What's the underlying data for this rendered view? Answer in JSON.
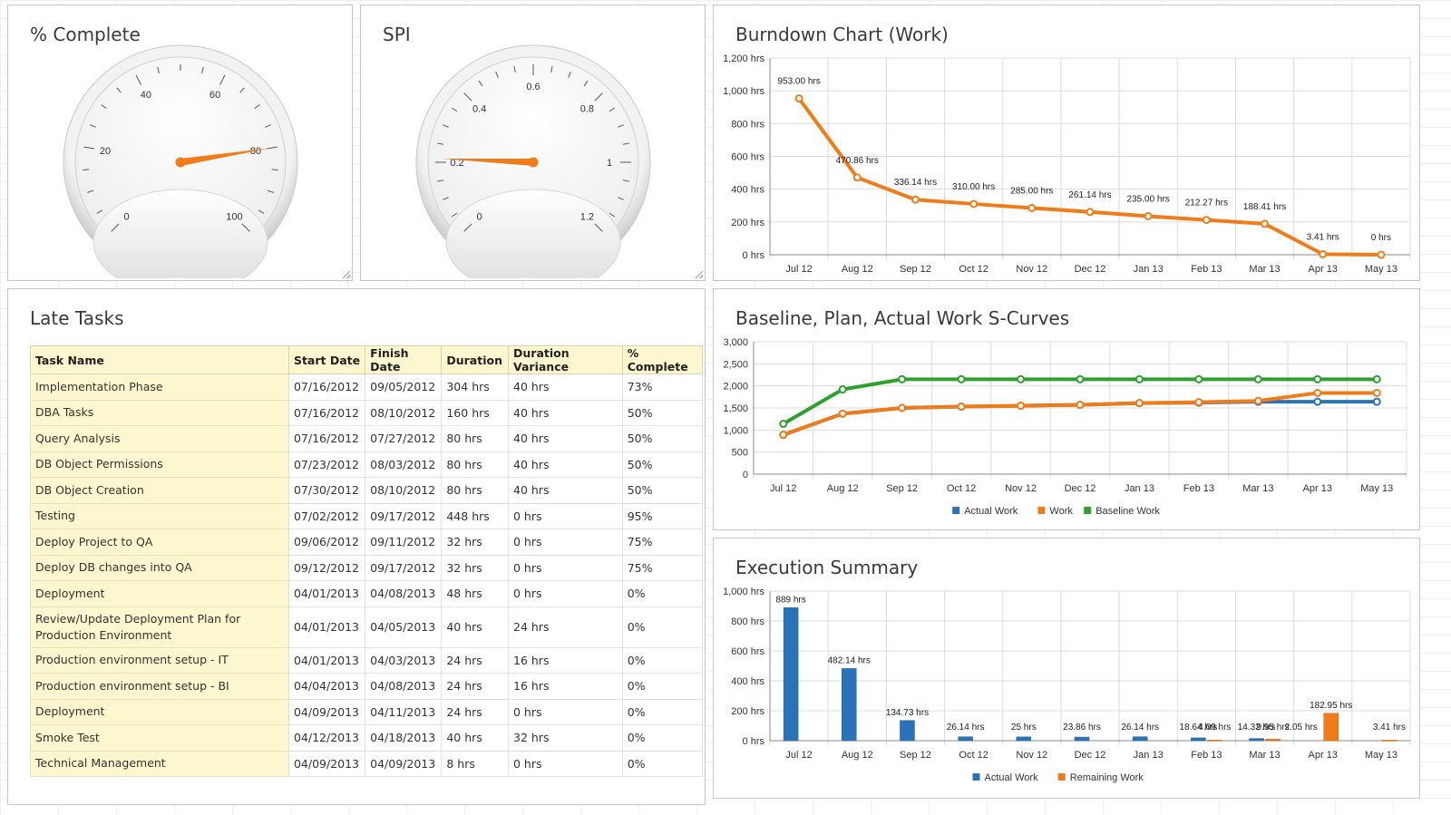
{
  "gauges": [
    {
      "title": "% Complete",
      "value": 80,
      "min": 0,
      "max": 100,
      "tick_labels": [
        "0",
        "20",
        "40",
        "60",
        "80",
        "100"
      ],
      "needle_color": "#f07b19"
    },
    {
      "title": "SPI",
      "value": 0.21,
      "min": 0,
      "max": 1.2,
      "tick_labels": [
        "0",
        "0.2",
        "0.4",
        "0.6",
        "0.8",
        "1",
        "1.2"
      ],
      "needle_color": "#f07b19"
    }
  ],
  "late_tasks": {
    "title": "Late Tasks",
    "columns": [
      "Task Name",
      "Start Date",
      "Finish Date",
      "Duration",
      "Duration Variance",
      "% Complete"
    ],
    "rows": [
      [
        "Implementation Phase",
        "07/16/2012",
        "09/05/2012",
        "304 hrs",
        "40 hrs",
        "73%"
      ],
      [
        "DBA Tasks",
        "07/16/2012",
        "08/10/2012",
        "160 hrs",
        "40 hrs",
        "50%"
      ],
      [
        "Query Analysis",
        "07/16/2012",
        "07/27/2012",
        "80 hrs",
        "40 hrs",
        "50%"
      ],
      [
        "DB Object Permissions",
        "07/23/2012",
        "08/03/2012",
        "80 hrs",
        "40 hrs",
        "50%"
      ],
      [
        "DB Object Creation",
        "07/30/2012",
        "08/10/2012",
        "80 hrs",
        "40 hrs",
        "50%"
      ],
      [
        "Testing",
        "07/02/2012",
        "09/17/2012",
        "448 hrs",
        "0 hrs",
        "95%"
      ],
      [
        "Deploy Project to QA",
        "09/06/2012",
        "09/11/2012",
        "32 hrs",
        "0 hrs",
        "75%"
      ],
      [
        "Deploy DB changes into QA",
        "09/12/2012",
        "09/17/2012",
        "32 hrs",
        "0 hrs",
        "75%"
      ],
      [
        "Deployment",
        "04/01/2013",
        "04/08/2013",
        "48 hrs",
        "0 hrs",
        "0%"
      ],
      [
        "Review/Update Deployment Plan for Production Environment",
        "04/01/2013",
        "04/05/2013",
        "40 hrs",
        "24 hrs",
        "0%"
      ],
      [
        "Production environment setup - IT",
        "04/01/2013",
        "04/03/2013",
        "24 hrs",
        "16 hrs",
        "0%"
      ],
      [
        "Production environment setup - BI",
        "04/04/2013",
        "04/08/2013",
        "24 hrs",
        "16 hrs",
        "0%"
      ],
      [
        "Deployment",
        "04/09/2013",
        "04/11/2013",
        "24 hrs",
        "0 hrs",
        "0%"
      ],
      [
        "Smoke Test",
        "04/12/2013",
        "04/18/2013",
        "40 hrs",
        "32 hrs",
        "0%"
      ],
      [
        "Technical Management",
        "04/09/2013",
        "04/09/2013",
        "8 hrs",
        "0 hrs",
        "0%"
      ]
    ]
  },
  "chart_data": [
    {
      "type": "line",
      "title": "Burndown Chart (Work)",
      "categories": [
        "Jul 12",
        "Aug 12",
        "Sep 12",
        "Oct 12",
        "Nov 12",
        "Dec 12",
        "Jan 13",
        "Feb 13",
        "Mar 13",
        "Apr 13",
        "May 13"
      ],
      "series": [
        {
          "values": [
            953,
            470.86,
            336.14,
            310,
            285,
            261.14,
            235,
            212.27,
            188.41,
            3.41,
            0
          ],
          "color": "#f07b19"
        }
      ],
      "data_labels": [
        "953.00 hrs",
        "470.86 hrs",
        "336.14 hrs",
        "310.00 hrs",
        "285.00 hrs",
        "261.14 hrs",
        "235.00 hrs",
        "212.27 hrs",
        "188.41 hrs",
        "3.41 hrs",
        "0 hrs"
      ],
      "y_ticks": [
        "0 hrs",
        "200 hrs",
        "400 hrs",
        "600 hrs",
        "800 hrs",
        "1,000 hrs",
        "1,200 hrs"
      ],
      "ylim": [
        0,
        1200
      ],
      "grid": true
    },
    {
      "type": "line",
      "title": "Baseline, Plan, Actual Work S-Curves",
      "categories": [
        "Jul 12",
        "Aug 12",
        "Sep 12",
        "Oct 12",
        "Nov 12",
        "Dec 12",
        "Jan 13",
        "Feb 13",
        "Mar 13",
        "Apr 13",
        "May 13"
      ],
      "series": [
        {
          "name": "Actual Work",
          "values": [
            890,
            1370,
            1500,
            1530,
            1550,
            1570,
            1610,
            1620,
            1640,
            1640,
            1640
          ],
          "color": "#2a73b8"
        },
        {
          "name": "Work",
          "values": [
            890,
            1370,
            1500,
            1530,
            1550,
            1570,
            1610,
            1630,
            1660,
            1840,
            1840
          ],
          "color": "#f07b19"
        },
        {
          "name": "Baseline Work",
          "values": [
            1140,
            1920,
            2150,
            2150,
            2150,
            2150,
            2150,
            2150,
            2150,
            2150,
            2150
          ],
          "color": "#2ea02e"
        }
      ],
      "y_ticks": [
        "0",
        "500",
        "1,000",
        "1,500",
        "2,000",
        "2,500",
        "3,000"
      ],
      "ylim": [
        0,
        3000
      ],
      "grid": true,
      "legend": "bottom"
    },
    {
      "type": "bar",
      "title": "Execution Summary",
      "categories": [
        "Jul 12",
        "Aug 12",
        "Sep 12",
        "Oct 12",
        "Nov 12",
        "Dec 12",
        "Jan 13",
        "Feb 13",
        "Mar 13",
        "Apr 13",
        "May 13"
      ],
      "series": [
        {
          "name": "Actual Work",
          "values": [
            889,
            482.14,
            134.73,
            26.14,
            25,
            23.86,
            26.14,
            18.64,
            14.32,
            0,
            0
          ],
          "labels": [
            "889 hrs",
            "482.14 hrs",
            "134.73 hrs",
            "26.14 hrs",
            "25 hrs",
            "23.86 hrs",
            "26.14 hrs",
            "18.64 hrs",
            "14.32 hrs",
            "",
            ""
          ],
          "color": "#2a73b8"
        },
        {
          "name": "Remaining Work",
          "values": [
            0,
            0,
            0,
            0,
            0,
            0,
            0,
            4.09,
            9.95,
            182.95,
            3.41
          ],
          "labels": [
            "",
            "",
            "",
            "",
            "",
            "",
            "",
            "4.09 hrs",
            "9.95 hrs",
            "182.95 hrs",
            "3.41 hrs"
          ],
          "color": "#f07b19"
        }
      ],
      "extra_labels": [
        {
          "text": "2.05 hrs",
          "category": "Apr 13"
        }
      ],
      "y_ticks": [
        "0 hrs",
        "200 hrs",
        "400 hrs",
        "600 hrs",
        "800 hrs",
        "1,000 hrs"
      ],
      "ylim": [
        0,
        1000
      ],
      "grid": true,
      "legend": "bottom"
    }
  ]
}
